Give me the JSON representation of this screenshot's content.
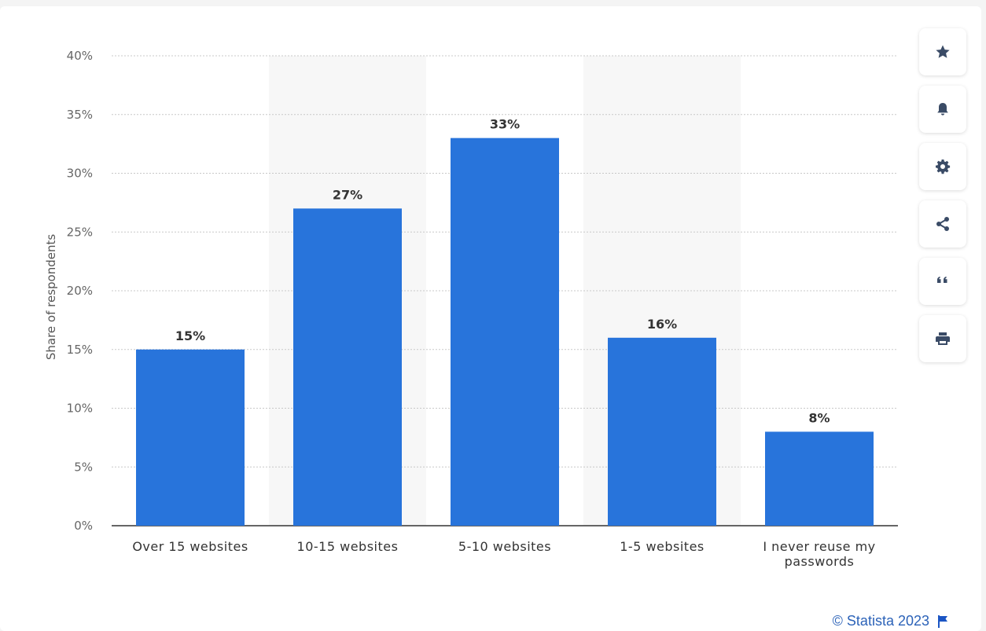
{
  "chart_data": {
    "type": "bar",
    "categories": [
      "Over 15 websites",
      "10-15 websites",
      "5-10 websites",
      "1-5 websites",
      "I never reuse my passwords"
    ],
    "category_lines": [
      [
        "Over 15 websites"
      ],
      [
        "10-15 websites"
      ],
      [
        "5-10 websites"
      ],
      [
        "1-5 websites"
      ],
      [
        "I never reuse my",
        "passwords"
      ]
    ],
    "values": [
      15,
      27,
      33,
      16,
      8
    ],
    "value_labels": [
      "15%",
      "27%",
      "33%",
      "16%",
      "8%"
    ],
    "ylabel": "Share of respondents",
    "ylim": [
      0,
      40
    ],
    "yticks": [
      0,
      5,
      10,
      15,
      20,
      25,
      30,
      35,
      40
    ],
    "ytick_labels": [
      "0%",
      "5%",
      "10%",
      "15%",
      "20%",
      "25%",
      "30%",
      "35%",
      "40%"
    ],
    "bar_color": "#2874db",
    "grid": true
  },
  "toolbar": {
    "items": [
      {
        "name": "favorite-button",
        "icon": "star-icon"
      },
      {
        "name": "notification-button",
        "icon": "bell-icon"
      },
      {
        "name": "settings-button",
        "icon": "gear-icon"
      },
      {
        "name": "share-button",
        "icon": "share-icon"
      },
      {
        "name": "cite-button",
        "icon": "quote-icon"
      },
      {
        "name": "print-button",
        "icon": "print-icon"
      }
    ]
  },
  "footer": {
    "credit": "© Statista 2023",
    "flag_icon": "flag-icon"
  }
}
